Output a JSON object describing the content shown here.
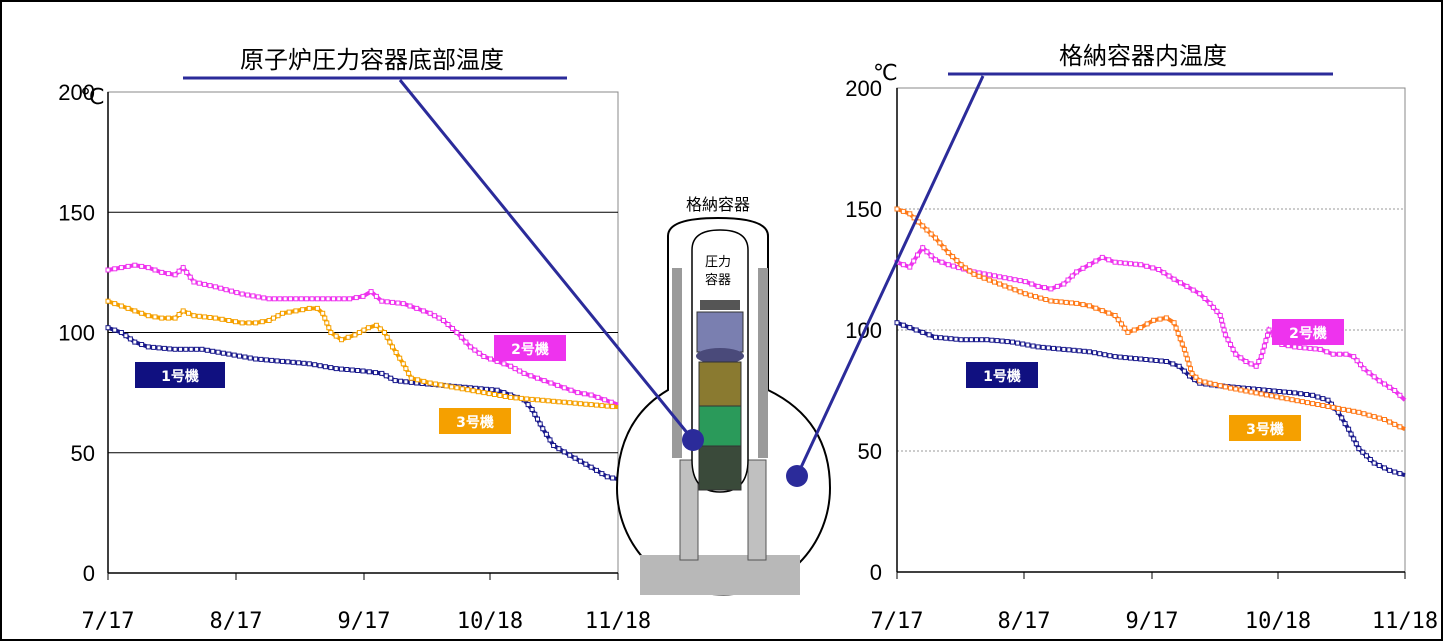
{
  "colors": {
    "unit1": "#1a1a8c",
    "unit2": "#ee33ee",
    "unit3_left": "#f5a000",
    "unit3_right": "#ff7a1a",
    "pointer": "#2b2b9a",
    "label_unit2_bg": "#ee33ee",
    "label_unit1_bg": "#101080",
    "label_unit3_bg": "#f5a000"
  },
  "diagram": {
    "containment_label": "格納容器",
    "vessel_label_line1": "圧力",
    "vessel_label_line2": "容器"
  },
  "chart_data": [
    {
      "type": "line",
      "title": "原子炉圧力容器底部温度",
      "unit": "℃",
      "x": [
        "7/17",
        "8/17",
        "9/17",
        "10/18",
        "11/18"
      ],
      "ylim": [
        0,
        200
      ],
      "yticks": [
        "0",
        "50",
        "100",
        "150",
        "200"
      ],
      "grid": "solid",
      "series": [
        {
          "name": "1号機",
          "key": "unit1",
          "points": [
            [
              0,
              102
            ],
            [
              5,
              100
            ],
            [
              10,
              96
            ],
            [
              15,
              94
            ],
            [
              25,
              93
            ],
            [
              35,
              93
            ],
            [
              45,
              91
            ],
            [
              55,
              89
            ],
            [
              65,
              88
            ],
            [
              75,
              87
            ],
            [
              85,
              85
            ],
            [
              95,
              84
            ],
            [
              102,
              83
            ],
            [
              107,
              80
            ],
            [
              115,
              79
            ],
            [
              125,
              78
            ],
            [
              135,
              77
            ],
            [
              145,
              76
            ],
            [
              150,
              74
            ],
            [
              155,
              72
            ],
            [
              158,
              68
            ],
            [
              162,
              60
            ],
            [
              166,
              53
            ],
            [
              172,
              49
            ],
            [
              180,
              44
            ],
            [
              186,
              40
            ],
            [
              190,
              39
            ]
          ]
        },
        {
          "name": "2号機",
          "key": "unit2",
          "points": [
            [
              0,
              126
            ],
            [
              5,
              127
            ],
            [
              10,
              128
            ],
            [
              15,
              127
            ],
            [
              20,
              125
            ],
            [
              25,
              124
            ],
            [
              28,
              127
            ],
            [
              32,
              121
            ],
            [
              40,
              119
            ],
            [
              50,
              116
            ],
            [
              60,
              114
            ],
            [
              70,
              114
            ],
            [
              80,
              114
            ],
            [
              90,
              114
            ],
            [
              95,
              115
            ],
            [
              98,
              117
            ],
            [
              102,
              113
            ],
            [
              110,
              112
            ],
            [
              115,
              110
            ],
            [
              120,
              108
            ],
            [
              125,
              105
            ],
            [
              130,
              100
            ],
            [
              135,
              94
            ],
            [
              140,
              90
            ],
            [
              145,
              88
            ],
            [
              150,
              86
            ],
            [
              155,
              83
            ],
            [
              160,
              81
            ],
            [
              165,
              79
            ],
            [
              170,
              77
            ],
            [
              175,
              75
            ],
            [
              180,
              74
            ],
            [
              185,
              72
            ],
            [
              190,
              70
            ]
          ]
        },
        {
          "name": "3号機",
          "key": "unit3_left",
          "points": [
            [
              0,
              113
            ],
            [
              5,
              111
            ],
            [
              10,
              109
            ],
            [
              15,
              107
            ],
            [
              20,
              106
            ],
            [
              25,
              106
            ],
            [
              28,
              109
            ],
            [
              32,
              107
            ],
            [
              40,
              106
            ],
            [
              45,
              105
            ],
            [
              50,
              104
            ],
            [
              55,
              104
            ],
            [
              60,
              105
            ],
            [
              65,
              108
            ],
            [
              70,
              109
            ],
            [
              75,
              110
            ],
            [
              78,
              110
            ],
            [
              80,
              108
            ],
            [
              83,
              100
            ],
            [
              87,
              97
            ],
            [
              92,
              99
            ],
            [
              97,
              102
            ],
            [
              100,
              103
            ],
            [
              103,
              100
            ],
            [
              106,
              94
            ],
            [
              110,
              87
            ],
            [
              113,
              81
            ],
            [
              120,
              79
            ],
            [
              130,
              77
            ],
            [
              140,
              75
            ],
            [
              150,
              73
            ],
            [
              160,
              72
            ],
            [
              170,
              71
            ],
            [
              180,
              70
            ],
            [
              190,
              69
            ]
          ]
        }
      ]
    },
    {
      "type": "line",
      "title": "格納容器内温度",
      "unit": "℃",
      "x": [
        "7/17",
        "8/17",
        "9/17",
        "10/18",
        "11/18"
      ],
      "ylim": [
        0,
        200
      ],
      "yticks": [
        "0",
        "50",
        "100",
        "150",
        "200"
      ],
      "grid": "dotted",
      "series": [
        {
          "name": "1号機",
          "key": "unit1",
          "points": [
            [
              0,
              103
            ],
            [
              5,
              101
            ],
            [
              10,
              99
            ],
            [
              15,
              97
            ],
            [
              25,
              96
            ],
            [
              35,
              96
            ],
            [
              45,
              95
            ],
            [
              55,
              93
            ],
            [
              65,
              92
            ],
            [
              75,
              91
            ],
            [
              85,
              89
            ],
            [
              95,
              88
            ],
            [
              105,
              87
            ],
            [
              110,
              85
            ],
            [
              114,
              81
            ],
            [
              118,
              78
            ],
            [
              125,
              77
            ],
            [
              135,
              76
            ],
            [
              145,
              75
            ],
            [
              155,
              74
            ],
            [
              162,
              73
            ],
            [
              168,
              71
            ],
            [
              172,
              66
            ],
            [
              176,
              59
            ],
            [
              180,
              51
            ],
            [
              186,
              45
            ],
            [
              192,
              42
            ],
            [
              198,
              40
            ]
          ]
        },
        {
          "name": "2号機",
          "key": "unit2",
          "points": [
            [
              0,
              128
            ],
            [
              5,
              126
            ],
            [
              8,
              131
            ],
            [
              10,
              134
            ],
            [
              15,
              129
            ],
            [
              20,
              127
            ],
            [
              30,
              124
            ],
            [
              40,
              122
            ],
            [
              50,
              120
            ],
            [
              55,
              118
            ],
            [
              60,
              117
            ],
            [
              65,
              119
            ],
            [
              70,
              124
            ],
            [
              75,
              127
            ],
            [
              80,
              130
            ],
            [
              85,
              128
            ],
            [
              95,
              127
            ],
            [
              102,
              125
            ],
            [
              108,
              121
            ],
            [
              113,
              118
            ],
            [
              118,
              115
            ],
            [
              122,
              111
            ],
            [
              126,
              106
            ],
            [
              128,
              98
            ],
            [
              132,
              90
            ],
            [
              136,
              87
            ],
            [
              140,
              85
            ],
            [
              142,
              89
            ],
            [
              145,
              100
            ],
            [
              150,
              94
            ],
            [
              155,
              93
            ],
            [
              165,
              92
            ],
            [
              170,
              90
            ],
            [
              175,
              90
            ],
            [
              178,
              89
            ],
            [
              182,
              84
            ],
            [
              188,
              79
            ],
            [
              194,
              75
            ],
            [
              198,
              71
            ]
          ]
        },
        {
          "name": "3号機",
          "key": "unit3_right",
          "points": [
            [
              0,
              150
            ],
            [
              5,
              148
            ],
            [
              10,
              143
            ],
            [
              15,
              138
            ],
            [
              20,
              132
            ],
            [
              25,
              127
            ],
            [
              30,
              123
            ],
            [
              40,
              119
            ],
            [
              50,
              115
            ],
            [
              60,
              112
            ],
            [
              70,
              111
            ],
            [
              75,
              110
            ],
            [
              80,
              108
            ],
            [
              85,
              106
            ],
            [
              90,
              99
            ],
            [
              95,
              101
            ],
            [
              100,
              104
            ],
            [
              105,
              105
            ],
            [
              108,
              103
            ],
            [
              112,
              92
            ],
            [
              115,
              82
            ],
            [
              118,
              79
            ],
            [
              130,
              76
            ],
            [
              140,
              74
            ],
            [
              150,
              72
            ],
            [
              160,
              70
            ],
            [
              170,
              68
            ],
            [
              180,
              66
            ],
            [
              190,
              63
            ],
            [
              198,
              59
            ]
          ]
        }
      ]
    }
  ]
}
